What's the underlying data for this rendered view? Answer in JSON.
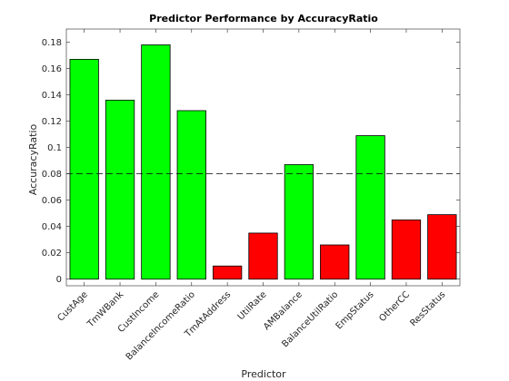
{
  "chart_data": {
    "type": "bar",
    "title": "Predictor Performance by AccuracyRatio",
    "xlabel": "Predictor",
    "ylabel": "AccuracyRatio",
    "categories": [
      "CustAge",
      "TmWBank",
      "CustIncome",
      "BalanceIncomeRatio",
      "TmAtAddress",
      "UtilRate",
      "AMBalance",
      "BalanceUtilRatio",
      "EmpStatus",
      "OtherCC",
      "ResStatus"
    ],
    "values": [
      0.167,
      0.136,
      0.178,
      0.128,
      0.01,
      0.035,
      0.087,
      0.026,
      0.109,
      0.045,
      0.049
    ],
    "colors_by_category": [
      "#00ff00",
      "#00ff00",
      "#00ff00",
      "#00ff00",
      "#ff0000",
      "#ff0000",
      "#00ff00",
      "#ff0000",
      "#00ff00",
      "#ff0000",
      "#ff0000"
    ],
    "bar_edge_color": "#000000",
    "threshold": 0.08,
    "threshold_style": "dashed",
    "ylim": [
      -0.005,
      0.19
    ],
    "yticks": [
      0,
      0.02,
      0.04,
      0.06,
      0.08,
      0.1,
      0.12,
      0.14,
      0.16,
      0.18
    ],
    "ytick_labels": [
      "0",
      "0.02",
      "0.04",
      "0.06",
      "0.08",
      "0.1",
      "0.12",
      "0.14",
      "0.16",
      "0.18"
    ],
    "grid": false,
    "box": true
  }
}
